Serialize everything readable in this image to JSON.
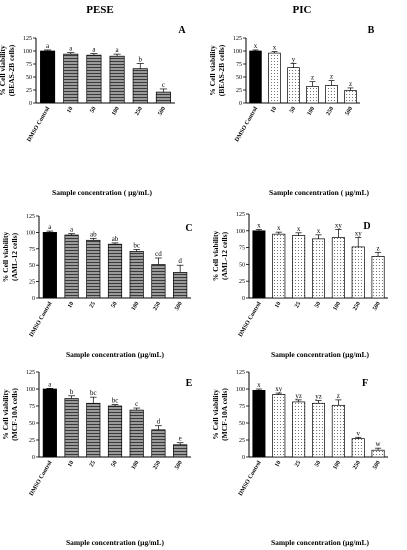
{
  "figure": {
    "column_titles": [
      "PESE",
      "PIC"
    ],
    "colors": {
      "control_bar": "#000000",
      "axis": "#000000",
      "pese_fill": "#7a7a7a",
      "pic_fill": "#ffffff",
      "pic_dots": "#555555"
    }
  },
  "chart_data": [
    {
      "panel": "A",
      "type": "bar",
      "column": "PESE",
      "ylabel": "% Cell viability\n(BEAS-2B cells)",
      "xlabel": "Sample concentration ( µg/mL)",
      "ylim": [
        0,
        125
      ],
      "yticks": [
        0,
        25,
        50,
        75,
        100,
        125
      ],
      "categories": [
        "DMSO Control",
        "10",
        "50",
        "100",
        "250",
        "500"
      ],
      "values": [
        100,
        94,
        92,
        90,
        66,
        21
      ],
      "errors": [
        2,
        3,
        3,
        4,
        10,
        6
      ],
      "labels": [
        "a",
        "a",
        "a",
        "a",
        "b",
        "c"
      ]
    },
    {
      "panel": "B",
      "type": "bar",
      "column": "PIC",
      "ylabel": "% Cell viability\n(BEAS-2B cells)",
      "xlabel": "Sample concentration ( µg/mL)",
      "ylim": [
        0,
        125
      ],
      "yticks": [
        0,
        25,
        50,
        75,
        100,
        125
      ],
      "categories": [
        "DMSO Control",
        "10",
        "50",
        "100",
        "250",
        "500"
      ],
      "values": [
        100,
        96,
        68,
        32,
        34,
        24
      ],
      "errors": [
        2,
        3,
        8,
        9,
        9,
        5
      ],
      "labels": [
        "x",
        "x",
        "y",
        "z",
        "z",
        "z"
      ]
    },
    {
      "panel": "C",
      "type": "bar",
      "column": "PESE",
      "ylabel": "% Cell viability\n(AML-12 cells)",
      "xlabel": "Sample concentration (µg/mL)",
      "ylim": [
        0,
        125
      ],
      "yticks": [
        0,
        25,
        50,
        75,
        100,
        125
      ],
      "categories": [
        "DMSO Control",
        "10",
        "25",
        "50",
        "100",
        "250",
        "500"
      ],
      "values": [
        100,
        96,
        88,
        82,
        71,
        51,
        39
      ],
      "errors": [
        2,
        2,
        3,
        2,
        3,
        10,
        11
      ],
      "labels": [
        "a",
        "a",
        "ab",
        "ab",
        "bc",
        "cd",
        "d"
      ]
    },
    {
      "panel": "D",
      "type": "bar",
      "column": "PIC",
      "ylabel": "% Cell viability\n(AML-12 cells)",
      "xlabel": "Sample concentration (µg/mL)",
      "ylim": [
        0,
        125
      ],
      "yticks": [
        0,
        25,
        50,
        75,
        100,
        125
      ],
      "categories": [
        "DMSO Control",
        "10",
        "25",
        "50",
        "100",
        "250",
        "500"
      ],
      "values": [
        100,
        95,
        93,
        88,
        90,
        76,
        62
      ],
      "errors": [
        2,
        3,
        4,
        6,
        12,
        14,
        6
      ],
      "labels": [
        "x",
        "x",
        "x",
        "x",
        "xy",
        "xy",
        "z"
      ]
    },
    {
      "panel": "E",
      "type": "bar",
      "column": "PESE",
      "ylabel": "% Cell viability\n(MCF-10A cells)",
      "xlabel": "Sample concentration (µg/mL)",
      "ylim": [
        0,
        125
      ],
      "yticks": [
        0,
        25,
        50,
        75,
        100,
        125
      ],
      "categories": [
        "DMSO Control",
        "10",
        "25",
        "50",
        "100",
        "250",
        "500"
      ],
      "values": [
        100,
        86,
        79,
        75,
        69,
        40,
        18
      ],
      "errors": [
        1,
        4,
        9,
        2,
        3,
        6,
        3
      ],
      "labels": [
        "a",
        "b",
        "bc",
        "bc",
        "c",
        "d",
        "e"
      ]
    },
    {
      "panel": "F",
      "type": "bar",
      "column": "PIC",
      "ylabel": "% Cell viability\n(MCF-10A cells)",
      "xlabel": "Sample concentration (µg/mL)",
      "ylim": [
        0,
        125
      ],
      "yticks": [
        0,
        25,
        50,
        75,
        100,
        125
      ],
      "categories": [
        "DMSO Control",
        "10",
        "25",
        "50",
        "100",
        "250",
        "500"
      ],
      "values": [
        98,
        92,
        81,
        79,
        76,
        27,
        10
      ],
      "errors": [
        2,
        2,
        3,
        4,
        8,
        2,
        3
      ],
      "labels": [
        "x",
        "xy",
        "yz",
        "yz",
        "z",
        "v",
        "w"
      ]
    }
  ]
}
